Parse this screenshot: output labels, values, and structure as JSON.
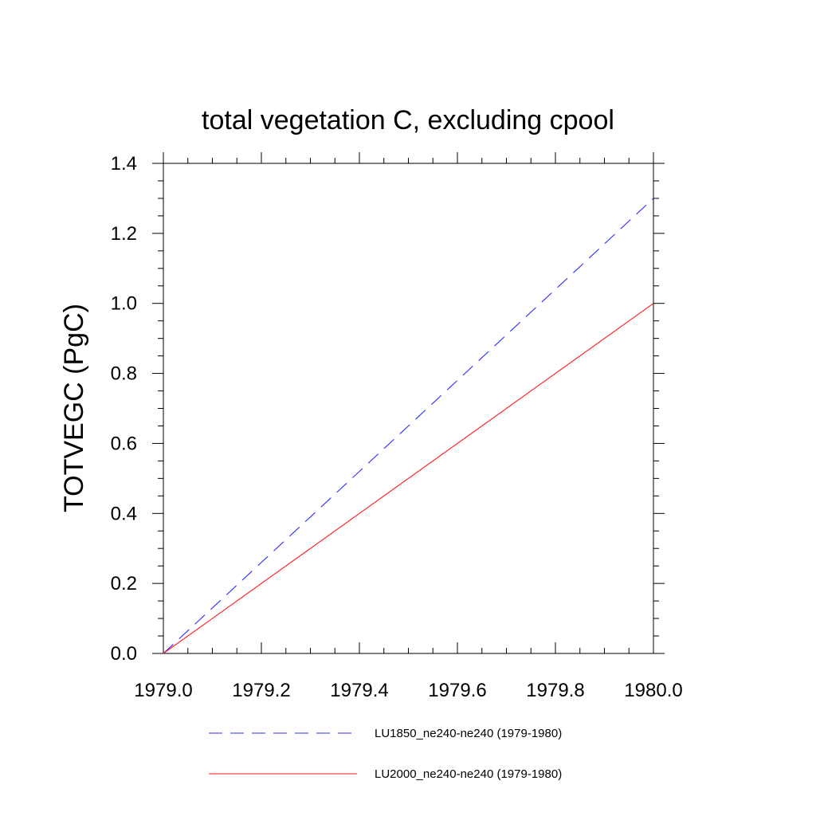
{
  "chart_data": {
    "type": "line",
    "title": "total vegetation C, excluding cpool",
    "xlabel": "",
    "ylabel": "TOTVEGC  (PgC)",
    "xlim": [
      1979.0,
      1980.0
    ],
    "ylim": [
      0.0,
      1.4
    ],
    "x_ticks": [
      1979.0,
      1979.2,
      1979.4,
      1979.6,
      1979.8,
      1980.0
    ],
    "x_tick_labels": [
      "1979.0",
      "1979.2",
      "1979.4",
      "1979.6",
      "1979.8",
      "1980.0"
    ],
    "y_ticks": [
      0.0,
      0.2,
      0.4,
      0.6,
      0.8,
      1.0,
      1.2,
      1.4
    ],
    "y_tick_labels": [
      "0.0",
      "0.2",
      "0.4",
      "0.6",
      "0.8",
      "1.0",
      "1.2",
      "1.4"
    ],
    "grid": false,
    "legend_position": "bottom",
    "series": [
      {
        "name": "LU1850_ne240-ne240 (1979-1980)",
        "color": "#2d2dff",
        "dash": "dashed",
        "x": [
          1979.0,
          1980.0
        ],
        "y": [
          0.0,
          1.3
        ]
      },
      {
        "name": "LU2000_ne240-ne240 (1979-1980)",
        "color": "#ff1a1a",
        "dash": "solid",
        "x": [
          1979.0,
          1980.0
        ],
        "y": [
          0.0,
          1.0
        ]
      }
    ]
  }
}
